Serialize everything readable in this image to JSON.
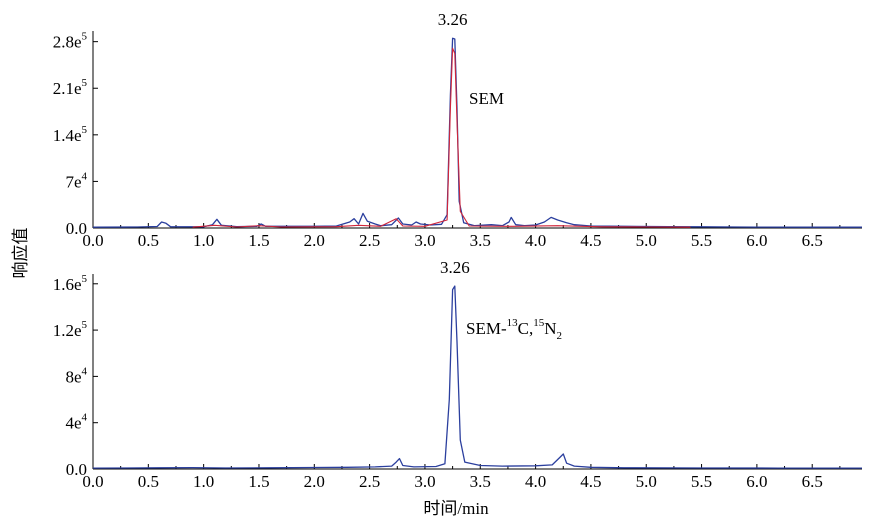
{
  "ylabel": "响应值",
  "xlabel": "时间/min",
  "colors": {
    "trace": "#2b3f9e",
    "overlay": "#d0253a",
    "axis": "#000000"
  },
  "chart_data": [
    {
      "type": "line",
      "peak_label": "3.26",
      "compound_label": {
        "text": "SEM"
      },
      "xlim": [
        0.0,
        6.95
      ],
      "ylim": [
        0,
        290000
      ],
      "x_ticks": [
        {
          "v": 0.0,
          "label": "0.0"
        },
        {
          "v": 0.5,
          "label": "0.5"
        },
        {
          "v": 1.0,
          "label": "1.0"
        },
        {
          "v": 1.5,
          "label": "1.5"
        },
        {
          "v": 2.0,
          "label": "2.0"
        },
        {
          "v": 2.5,
          "label": "2.5"
        },
        {
          "v": 3.0,
          "label": "3.0"
        },
        {
          "v": 3.5,
          "label": "3.5"
        },
        {
          "v": 4.0,
          "label": "4.0"
        },
        {
          "v": 4.5,
          "label": "4.5"
        },
        {
          "v": 5.0,
          "label": "5.0"
        },
        {
          "v": 5.5,
          "label": "5.5"
        },
        {
          "v": 6.0,
          "label": "6.0"
        },
        {
          "v": 6.5,
          "label": "6.5"
        }
      ],
      "y_ticks": [
        {
          "v": 280000,
          "base": "2.8e",
          "exp": "5"
        },
        {
          "v": 210000,
          "base": "2.1e",
          "exp": "5"
        },
        {
          "v": 140000,
          "base": "1.4e",
          "exp": "5"
        },
        {
          "v": 70000,
          "base": "7e",
          "exp": "4"
        },
        {
          "v": 0,
          "base": "0.0",
          "exp": ""
        }
      ],
      "series": [
        {
          "color": "#2b3f9e",
          "points": [
            [
              0.0,
              1200
            ],
            [
              0.4,
              1500
            ],
            [
              0.58,
              2200
            ],
            [
              0.62,
              9000
            ],
            [
              0.66,
              7000
            ],
            [
              0.7,
              2000
            ],
            [
              1.0,
              1800
            ],
            [
              1.08,
              5000
            ],
            [
              1.12,
              13000
            ],
            [
              1.16,
              4000
            ],
            [
              1.3,
              2000
            ],
            [
              1.48,
              2500
            ],
            [
              1.52,
              6000
            ],
            [
              1.56,
              2500
            ],
            [
              1.7,
              2500
            ],
            [
              2.0,
              2500
            ],
            [
              2.2,
              3000
            ],
            [
              2.32,
              9000
            ],
            [
              2.36,
              14000
            ],
            [
              2.4,
              6000
            ],
            [
              2.44,
              22000
            ],
            [
              2.48,
              10000
            ],
            [
              2.55,
              6000
            ],
            [
              2.6,
              3500
            ],
            [
              2.7,
              5000
            ],
            [
              2.76,
              15000
            ],
            [
              2.8,
              6000
            ],
            [
              2.88,
              4500
            ],
            [
              2.92,
              9000
            ],
            [
              2.96,
              6000
            ],
            [
              3.05,
              4500
            ],
            [
              3.15,
              5500
            ],
            [
              3.2,
              20000
            ],
            [
              3.23,
              200000
            ],
            [
              3.25,
              285000
            ],
            [
              3.27,
              284000
            ],
            [
              3.29,
              180000
            ],
            [
              3.31,
              40000
            ],
            [
              3.35,
              8000
            ],
            [
              3.45,
              3500
            ],
            [
              3.6,
              5000
            ],
            [
              3.7,
              3500
            ],
            [
              3.76,
              9000
            ],
            [
              3.78,
              16000
            ],
            [
              3.82,
              5000
            ],
            [
              3.9,
              3500
            ],
            [
              4.0,
              4500
            ],
            [
              4.08,
              9000
            ],
            [
              4.14,
              16000
            ],
            [
              4.2,
              12000
            ],
            [
              4.28,
              8000
            ],
            [
              4.35,
              5000
            ],
            [
              4.5,
              3000
            ],
            [
              4.8,
              2500
            ],
            [
              5.2,
              2000
            ],
            [
              5.5,
              1800
            ],
            [
              5.8,
              1500
            ],
            [
              6.0,
              1300
            ],
            [
              6.5,
              1200
            ],
            [
              6.95,
              1200
            ]
          ]
        },
        {
          "color": "#d0253a",
          "points": [
            [
              0.9,
              1200
            ],
            [
              1.1,
              4000
            ],
            [
              1.3,
              1500
            ],
            [
              1.5,
              3500
            ],
            [
              1.7,
              1500
            ],
            [
              2.2,
              2000
            ],
            [
              2.4,
              4000
            ],
            [
              2.6,
              2500
            ],
            [
              2.74,
              14000
            ],
            [
              2.8,
              3000
            ],
            [
              3.0,
              2500
            ],
            [
              3.2,
              12000
            ],
            [
              3.23,
              180000
            ],
            [
              3.25,
              270000
            ],
            [
              3.27,
              262000
            ],
            [
              3.29,
              160000
            ],
            [
              3.32,
              25000
            ],
            [
              3.4,
              3000
            ],
            [
              3.8,
              2500
            ],
            [
              4.2,
              3500
            ],
            [
              4.6,
              1800
            ],
            [
              5.0,
              1500
            ],
            [
              5.4,
              1200
            ]
          ]
        }
      ]
    },
    {
      "type": "line",
      "peak_label": "3.26",
      "compound_label": {
        "main": "SEM-",
        "s1": "13",
        "mid": "C,",
        "s2": "15",
        "tail": "N",
        "sub": "2"
      },
      "xlim": [
        0.0,
        6.95
      ],
      "ylim": [
        0,
        165000
      ],
      "x_ticks": [
        {
          "v": 0.0,
          "label": "0.0"
        },
        {
          "v": 0.5,
          "label": "0.5"
        },
        {
          "v": 1.0,
          "label": "1.0"
        },
        {
          "v": 1.5,
          "label": "1.5"
        },
        {
          "v": 2.0,
          "label": "2.0"
        },
        {
          "v": 2.5,
          "label": "2.5"
        },
        {
          "v": 3.0,
          "label": "3.0"
        },
        {
          "v": 3.5,
          "label": "3.5"
        },
        {
          "v": 4.0,
          "label": "4.0"
        },
        {
          "v": 4.5,
          "label": "4.5"
        },
        {
          "v": 5.0,
          "label": "5.0"
        },
        {
          "v": 5.5,
          "label": "5.5"
        },
        {
          "v": 6.0,
          "label": "6.0"
        },
        {
          "v": 6.5,
          "label": "6.5"
        }
      ],
      "y_ticks": [
        {
          "v": 160000,
          "base": "1.6e",
          "exp": "5"
        },
        {
          "v": 120000,
          "base": "1.2e",
          "exp": "5"
        },
        {
          "v": 80000,
          "base": "8e",
          "exp": "4"
        },
        {
          "v": 40000,
          "base": "4e",
          "exp": "4"
        },
        {
          "v": 0,
          "base": "0.0",
          "exp": ""
        }
      ],
      "series": [
        {
          "color": "#2b3f9e",
          "points": [
            [
              0.0,
              800
            ],
            [
              0.3,
              900
            ],
            [
              0.6,
              1000
            ],
            [
              0.9,
              1200
            ],
            [
              1.2,
              900
            ],
            [
              1.6,
              1000
            ],
            [
              2.0,
              1300
            ],
            [
              2.3,
              1500
            ],
            [
              2.55,
              1800
            ],
            [
              2.7,
              2500
            ],
            [
              2.74,
              6000
            ],
            [
              2.77,
              9000
            ],
            [
              2.8,
              3000
            ],
            [
              2.9,
              1800
            ],
            [
              3.1,
              2200
            ],
            [
              3.18,
              4500
            ],
            [
              3.22,
              60000
            ],
            [
              3.25,
              155000
            ],
            [
              3.27,
              158000
            ],
            [
              3.29,
              110000
            ],
            [
              3.32,
              25000
            ],
            [
              3.36,
              6000
            ],
            [
              3.5,
              3000
            ],
            [
              3.7,
              2500
            ],
            [
              4.0,
              2800
            ],
            [
              4.15,
              3500
            ],
            [
              4.22,
              10000
            ],
            [
              4.25,
              13000
            ],
            [
              4.28,
              5000
            ],
            [
              4.35,
              2500
            ],
            [
              4.5,
              1500
            ],
            [
              4.8,
              1000
            ],
            [
              5.5,
              900
            ],
            [
              6.2,
              800
            ],
            [
              6.95,
              800
            ]
          ]
        }
      ]
    }
  ]
}
